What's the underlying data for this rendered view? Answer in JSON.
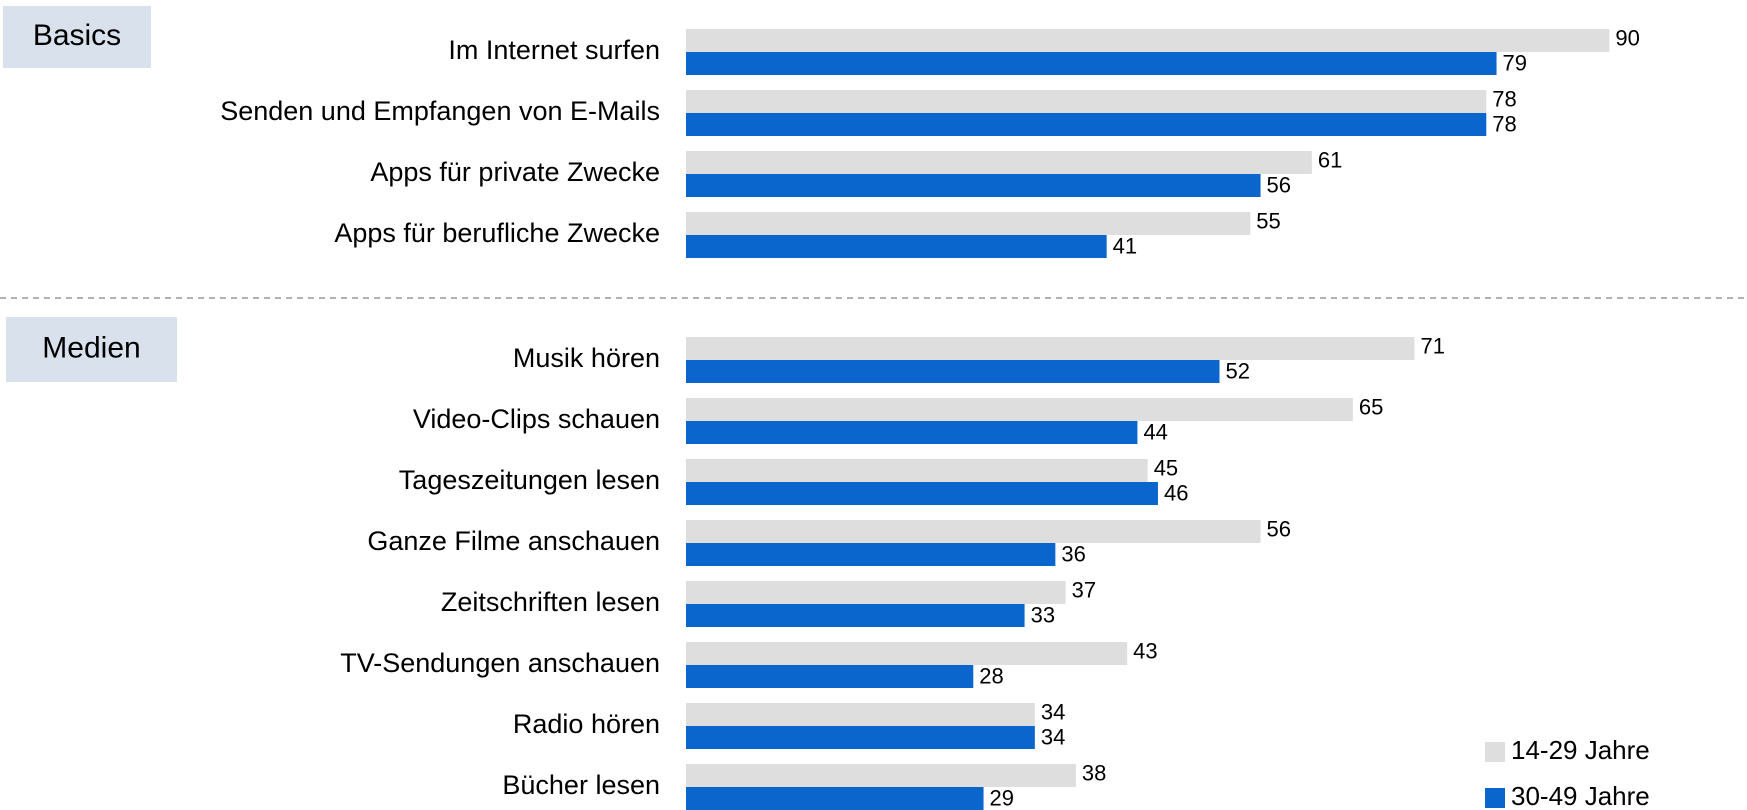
{
  "chart_data": {
    "type": "bar",
    "orientation": "horizontal",
    "groups": [
      {
        "label": "Basics",
        "categories": [
          "Im Internet surfen",
          "Senden und Empfangen von E-Mails",
          "Apps für private Zwecke",
          "Apps für berufliche Zwecke"
        ]
      },
      {
        "label": "Medien",
        "categories": [
          "Musik hören",
          "Video-Clips schauen",
          "Tageszeitungen lesen",
          "Ganze Filme anschauen",
          "Zeitschriften lesen",
          "TV-Sendungen anschauen",
          "Radio hören",
          "Bücher lesen"
        ]
      }
    ],
    "series": [
      {
        "name": "14-29 Jahre",
        "color": "#dedede",
        "values": [
          90,
          78,
          61,
          55,
          71,
          65,
          45,
          56,
          37,
          43,
          34,
          38
        ]
      },
      {
        "name": "30-49 Jahre",
        "color": "#0a66cc",
        "values": [
          79,
          78,
          56,
          41,
          52,
          44,
          46,
          36,
          33,
          28,
          34,
          29
        ]
      }
    ],
    "xlim": [
      0,
      100
    ],
    "legend": "bottom-right"
  }
}
